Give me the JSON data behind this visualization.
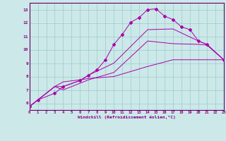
{
  "bg_color": "#cce8e8",
  "line_color": "#aa00aa",
  "grid_color": "#99cccc",
  "spine_color": "#660066",
  "tick_color": "#880088",
  "xlim": [
    0,
    23
  ],
  "ylim": [
    5.5,
    13.5
  ],
  "xlabel": "Windchill (Refroidissement éolien,°C)",
  "line1_x": [
    0,
    1,
    3,
    4,
    6,
    7,
    8,
    9,
    10,
    11,
    12,
    13,
    14,
    15,
    16,
    17,
    18,
    19,
    20,
    21,
    23
  ],
  "line1_y": [
    5.75,
    6.25,
    6.75,
    7.25,
    7.7,
    8.1,
    8.5,
    9.25,
    10.4,
    11.15,
    12.05,
    12.4,
    13.0,
    13.05,
    12.5,
    12.25,
    11.7,
    11.5,
    10.65,
    10.4,
    9.25
  ],
  "line2_x": [
    0,
    3,
    4,
    6,
    7,
    10,
    14,
    17,
    20,
    21,
    23
  ],
  "line2_y": [
    5.75,
    7.25,
    7.25,
    7.7,
    8.1,
    9.0,
    11.5,
    11.55,
    10.65,
    10.4,
    9.25
  ],
  "line3_x": [
    0,
    3,
    4,
    6,
    7,
    10,
    14,
    17,
    20,
    21,
    23
  ],
  "line3_y": [
    5.75,
    7.25,
    7.0,
    7.5,
    7.75,
    8.3,
    10.65,
    10.45,
    10.4,
    10.35,
    9.25
  ],
  "line4_x": [
    0,
    3,
    4,
    6,
    7,
    10,
    14,
    17,
    20,
    21,
    23
  ],
  "line4_y": [
    5.75,
    7.25,
    7.6,
    7.75,
    7.85,
    8.0,
    8.75,
    9.25,
    9.25,
    9.25,
    9.25
  ]
}
